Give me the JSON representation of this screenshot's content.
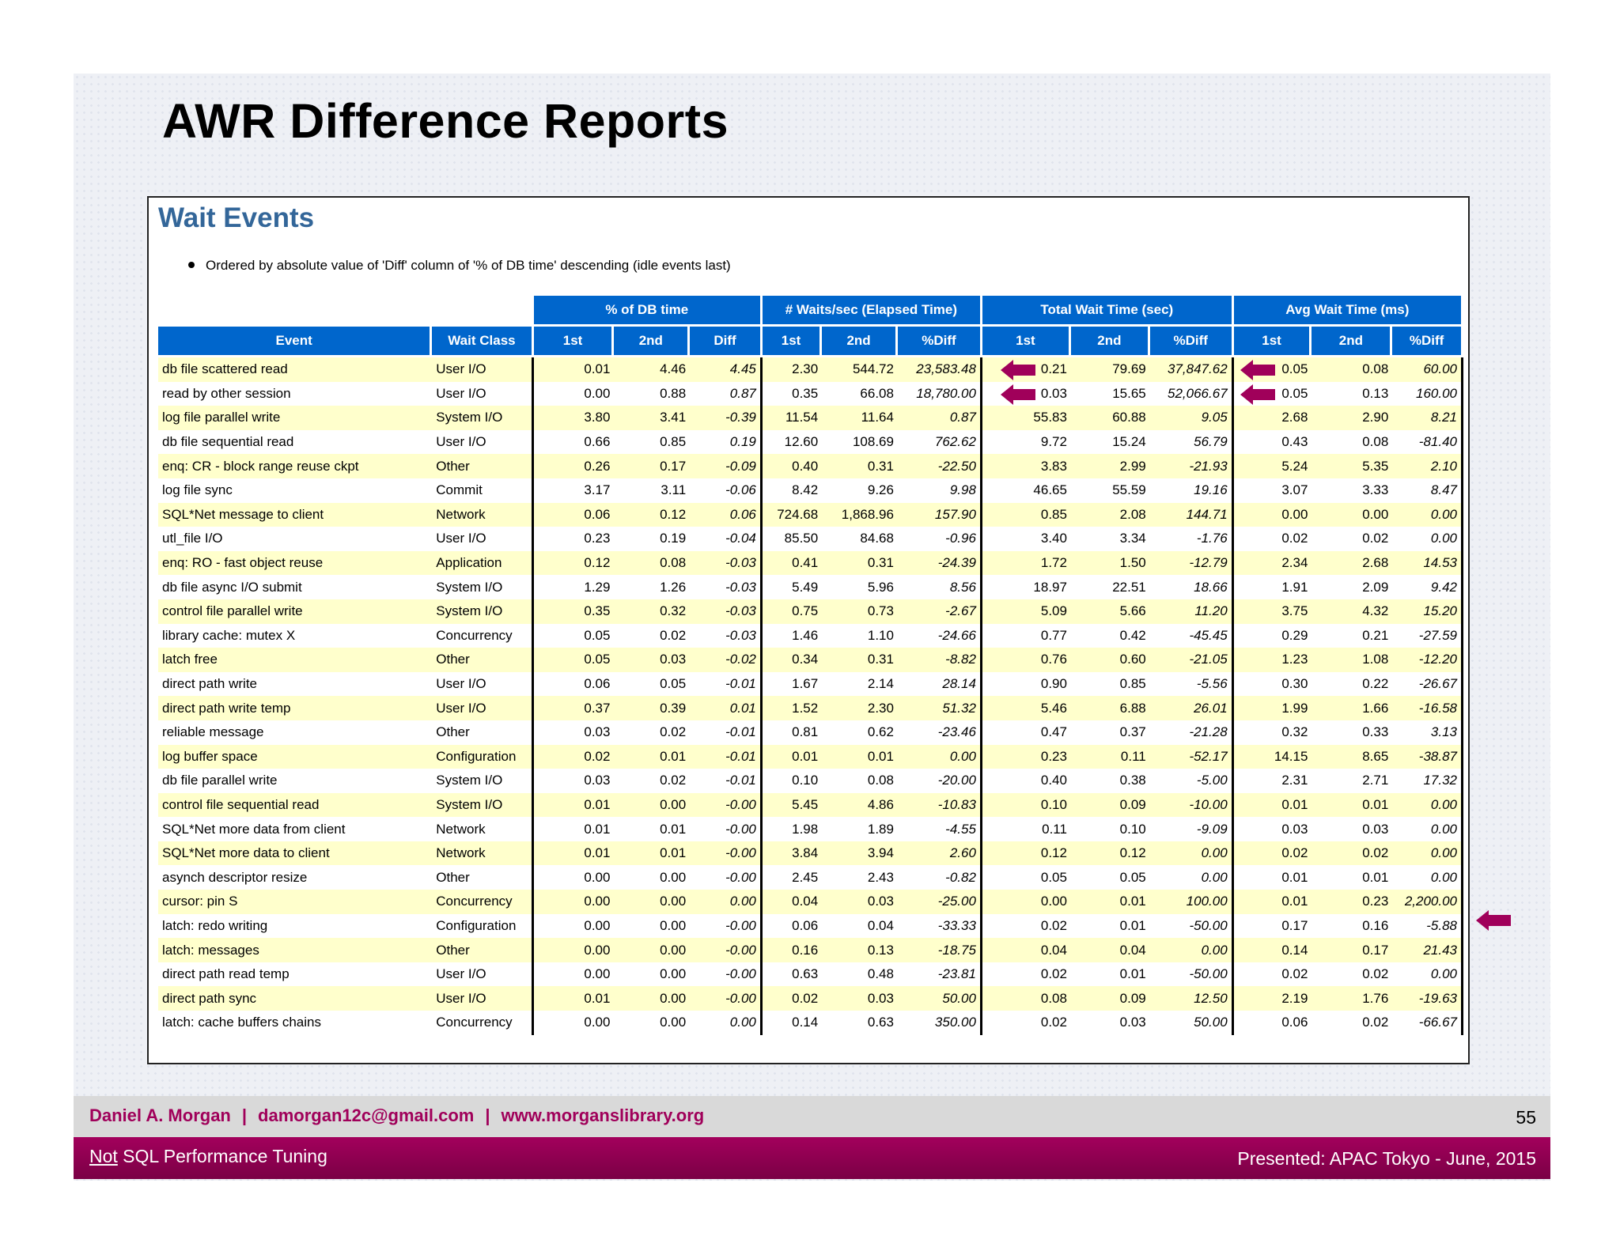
{
  "slide_title": "AWR Difference Reports",
  "report": {
    "title": "Wait Events",
    "bullet": "Ordered by absolute value of 'Diff' column of '% of DB time' descending (idle events last)",
    "group_headers": [
      "% of DB time",
      "# Waits/sec (Elapsed Time)",
      "Total Wait Time (sec)",
      "Avg Wait Time (ms)"
    ],
    "col_headers": [
      "Event",
      "Wait Class",
      "1st",
      "2nd",
      "Diff",
      "1st",
      "2nd",
      "%Diff",
      "1st",
      "2nd",
      "%Diff",
      "1st",
      "2nd",
      "%Diff"
    ],
    "rows": [
      [
        "db file scattered read",
        "User I/O",
        "0.01",
        "4.46",
        "4.45",
        "2.30",
        "544.72",
        "23,583.48",
        "0.21",
        "79.69",
        "37,847.62",
        "0.05",
        "0.08",
        "60.00"
      ],
      [
        "read by other session",
        "User I/O",
        "0.00",
        "0.88",
        "0.87",
        "0.35",
        "66.08",
        "18,780.00",
        "0.03",
        "15.65",
        "52,066.67",
        "0.05",
        "0.13",
        "160.00"
      ],
      [
        "log file parallel write",
        "System I/O",
        "3.80",
        "3.41",
        "-0.39",
        "11.54",
        "11.64",
        "0.87",
        "55.83",
        "60.88",
        "9.05",
        "2.68",
        "2.90",
        "8.21"
      ],
      [
        "db file sequential read",
        "User I/O",
        "0.66",
        "0.85",
        "0.19",
        "12.60",
        "108.69",
        "762.62",
        "9.72",
        "15.24",
        "56.79",
        "0.43",
        "0.08",
        "-81.40"
      ],
      [
        "enq: CR - block range reuse ckpt",
        "Other",
        "0.26",
        "0.17",
        "-0.09",
        "0.40",
        "0.31",
        "-22.50",
        "3.83",
        "2.99",
        "-21.93",
        "5.24",
        "5.35",
        "2.10"
      ],
      [
        "log file sync",
        "Commit",
        "3.17",
        "3.11",
        "-0.06",
        "8.42",
        "9.26",
        "9.98",
        "46.65",
        "55.59",
        "19.16",
        "3.07",
        "3.33",
        "8.47"
      ],
      [
        "SQL*Net message to client",
        "Network",
        "0.06",
        "0.12",
        "0.06",
        "724.68",
        "1,868.96",
        "157.90",
        "0.85",
        "2.08",
        "144.71",
        "0.00",
        "0.00",
        "0.00"
      ],
      [
        "utl_file I/O",
        "User I/O",
        "0.23",
        "0.19",
        "-0.04",
        "85.50",
        "84.68",
        "-0.96",
        "3.40",
        "3.34",
        "-1.76",
        "0.02",
        "0.02",
        "0.00"
      ],
      [
        "enq: RO - fast object reuse",
        "Application",
        "0.12",
        "0.08",
        "-0.03",
        "0.41",
        "0.31",
        "-24.39",
        "1.72",
        "1.50",
        "-12.79",
        "2.34",
        "2.68",
        "14.53"
      ],
      [
        "db file async I/O submit",
        "System I/O",
        "1.29",
        "1.26",
        "-0.03",
        "5.49",
        "5.96",
        "8.56",
        "18.97",
        "22.51",
        "18.66",
        "1.91",
        "2.09",
        "9.42"
      ],
      [
        "control file parallel write",
        "System I/O",
        "0.35",
        "0.32",
        "-0.03",
        "0.75",
        "0.73",
        "-2.67",
        "5.09",
        "5.66",
        "11.20",
        "3.75",
        "4.32",
        "15.20"
      ],
      [
        "library cache: mutex X",
        "Concurrency",
        "0.05",
        "0.02",
        "-0.03",
        "1.46",
        "1.10",
        "-24.66",
        "0.77",
        "0.42",
        "-45.45",
        "0.29",
        "0.21",
        "-27.59"
      ],
      [
        "latch free",
        "Other",
        "0.05",
        "0.03",
        "-0.02",
        "0.34",
        "0.31",
        "-8.82",
        "0.76",
        "0.60",
        "-21.05",
        "1.23",
        "1.08",
        "-12.20"
      ],
      [
        "direct path write",
        "User I/O",
        "0.06",
        "0.05",
        "-0.01",
        "1.67",
        "2.14",
        "28.14",
        "0.90",
        "0.85",
        "-5.56",
        "0.30",
        "0.22",
        "-26.67"
      ],
      [
        "direct path write temp",
        "User I/O",
        "0.37",
        "0.39",
        "0.01",
        "1.52",
        "2.30",
        "51.32",
        "5.46",
        "6.88",
        "26.01",
        "1.99",
        "1.66",
        "-16.58"
      ],
      [
        "reliable message",
        "Other",
        "0.03",
        "0.02",
        "-0.01",
        "0.81",
        "0.62",
        "-23.46",
        "0.47",
        "0.37",
        "-21.28",
        "0.32",
        "0.33",
        "3.13"
      ],
      [
        "log buffer space",
        "Configuration",
        "0.02",
        "0.01",
        "-0.01",
        "0.01",
        "0.01",
        "0.00",
        "0.23",
        "0.11",
        "-52.17",
        "14.15",
        "8.65",
        "-38.87"
      ],
      [
        "db file parallel write",
        "System I/O",
        "0.03",
        "0.02",
        "-0.01",
        "0.10",
        "0.08",
        "-20.00",
        "0.40",
        "0.38",
        "-5.00",
        "2.31",
        "2.71",
        "17.32"
      ],
      [
        "control file sequential read",
        "System I/O",
        "0.01",
        "0.00",
        "-0.00",
        "5.45",
        "4.86",
        "-10.83",
        "0.10",
        "0.09",
        "-10.00",
        "0.01",
        "0.01",
        "0.00"
      ],
      [
        "SQL*Net more data from client",
        "Network",
        "0.01",
        "0.01",
        "-0.00",
        "1.98",
        "1.89",
        "-4.55",
        "0.11",
        "0.10",
        "-9.09",
        "0.03",
        "0.03",
        "0.00"
      ],
      [
        "SQL*Net more data to client",
        "Network",
        "0.01",
        "0.01",
        "-0.00",
        "3.84",
        "3.94",
        "2.60",
        "0.12",
        "0.12",
        "0.00",
        "0.02",
        "0.02",
        "0.00"
      ],
      [
        "asynch descriptor resize",
        "Other",
        "0.00",
        "0.00",
        "-0.00",
        "2.45",
        "2.43",
        "-0.82",
        "0.05",
        "0.05",
        "0.00",
        "0.01",
        "0.01",
        "0.00"
      ],
      [
        "cursor: pin S",
        "Concurrency",
        "0.00",
        "0.00",
        "0.00",
        "0.04",
        "0.03",
        "-25.00",
        "0.00",
        "0.01",
        "100.00",
        "0.01",
        "0.23",
        "2,200.00"
      ],
      [
        "latch: redo writing",
        "Configuration",
        "0.00",
        "0.00",
        "-0.00",
        "0.06",
        "0.04",
        "-33.33",
        "0.02",
        "0.01",
        "-50.00",
        "0.17",
        "0.16",
        "-5.88"
      ],
      [
        "latch: messages",
        "Other",
        "0.00",
        "0.00",
        "-0.00",
        "0.16",
        "0.13",
        "-18.75",
        "0.04",
        "0.04",
        "0.00",
        "0.14",
        "0.17",
        "21.43"
      ],
      [
        "direct path read temp",
        "User I/O",
        "0.00",
        "0.00",
        "-0.00",
        "0.63",
        "0.48",
        "-23.81",
        "0.02",
        "0.01",
        "-50.00",
        "0.02",
        "0.02",
        "0.00"
      ],
      [
        "direct path sync",
        "User I/O",
        "0.01",
        "0.00",
        "-0.00",
        "0.02",
        "0.03",
        "50.00",
        "0.08",
        "0.09",
        "12.50",
        "2.19",
        "1.76",
        "-19.63"
      ],
      [
        "latch: cache buffers chains",
        "Concurrency",
        "0.00",
        "0.00",
        "0.00",
        "0.14",
        "0.63",
        "350.00",
        "0.02",
        "0.03",
        "50.00",
        "0.06",
        "0.02",
        "-66.67"
      ]
    ]
  },
  "footer": {
    "author": "Daniel A. Morgan",
    "separator": "|",
    "email": "damorgan12c@gmail.com",
    "website": "www.morganslibrary.org",
    "page_number": "55",
    "subtitle_prefix": "Not",
    "subtitle_rest": " SQL Performance Tuning",
    "presented": "Presented: APAC Tokyo  - June, 2015"
  },
  "colors": {
    "header_blue": "#0066cc",
    "title_blue": "#336699",
    "row_yellow": "#ffffcc",
    "arrow_magenta": "#a0005a",
    "footer_magenta": "#a3005c"
  }
}
